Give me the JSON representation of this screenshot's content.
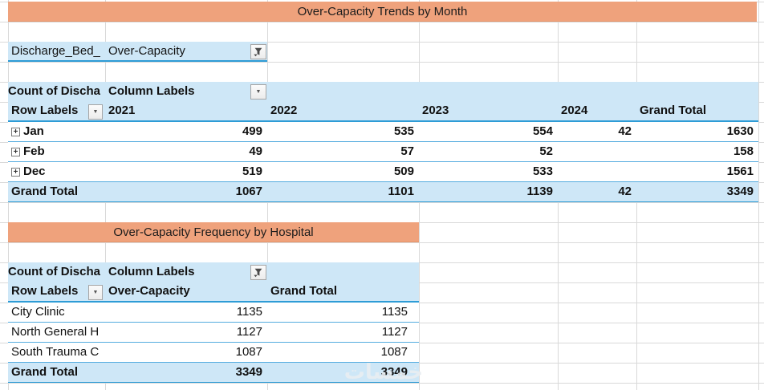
{
  "titles": {
    "table1": "Over-Capacity Trends by Month",
    "table2": "Over-Capacity Frequency by Hospital"
  },
  "filter": {
    "field": "Discharge_Bed_",
    "value": "Over-Capacity"
  },
  "pivot1": {
    "corner": "Count of Discha",
    "column_labels": "Column Labels",
    "row_labels": "Row Labels",
    "columns": [
      "2021",
      "2022",
      "2023",
      "2024",
      "Grand Total"
    ],
    "rows": [
      {
        "label": "Jan",
        "values": [
          "499",
          "535",
          "554",
          "42",
          "1630"
        ]
      },
      {
        "label": "Feb",
        "values": [
          "49",
          "57",
          "52",
          "",
          "158"
        ]
      },
      {
        "label": "Dec",
        "values": [
          "519",
          "509",
          "533",
          "",
          "1561"
        ]
      }
    ],
    "grand_total": {
      "label": "Grand Total",
      "values": [
        "1067",
        "1101",
        "1139",
        "42",
        "3349"
      ]
    }
  },
  "pivot2": {
    "corner": "Count of Discha",
    "column_labels": "Column Labels",
    "row_labels": "Row Labels",
    "columns": [
      "Over-Capacity",
      "Grand Total"
    ],
    "rows": [
      {
        "label": "City Clinic",
        "values": [
          "1135",
          "1135"
        ]
      },
      {
        "label": "North General H",
        "values": [
          "1127",
          "1127"
        ]
      },
      {
        "label": "South Trauma C",
        "values": [
          "1087",
          "1087"
        ]
      }
    ],
    "grand_total": {
      "label": "Grand Total",
      "values": [
        "3349",
        "3349"
      ]
    }
  },
  "icons": {
    "expand": "+",
    "dropdown_caret": "▼"
  },
  "watermark": "خمسات",
  "colors": {
    "title_fill": "#EFA27C",
    "header_fill": "#CEE7F7",
    "pivot_border_strong": "#2E9CD6",
    "pivot_border_light": "#55ACDF",
    "gridline": "#D9D9D9"
  }
}
